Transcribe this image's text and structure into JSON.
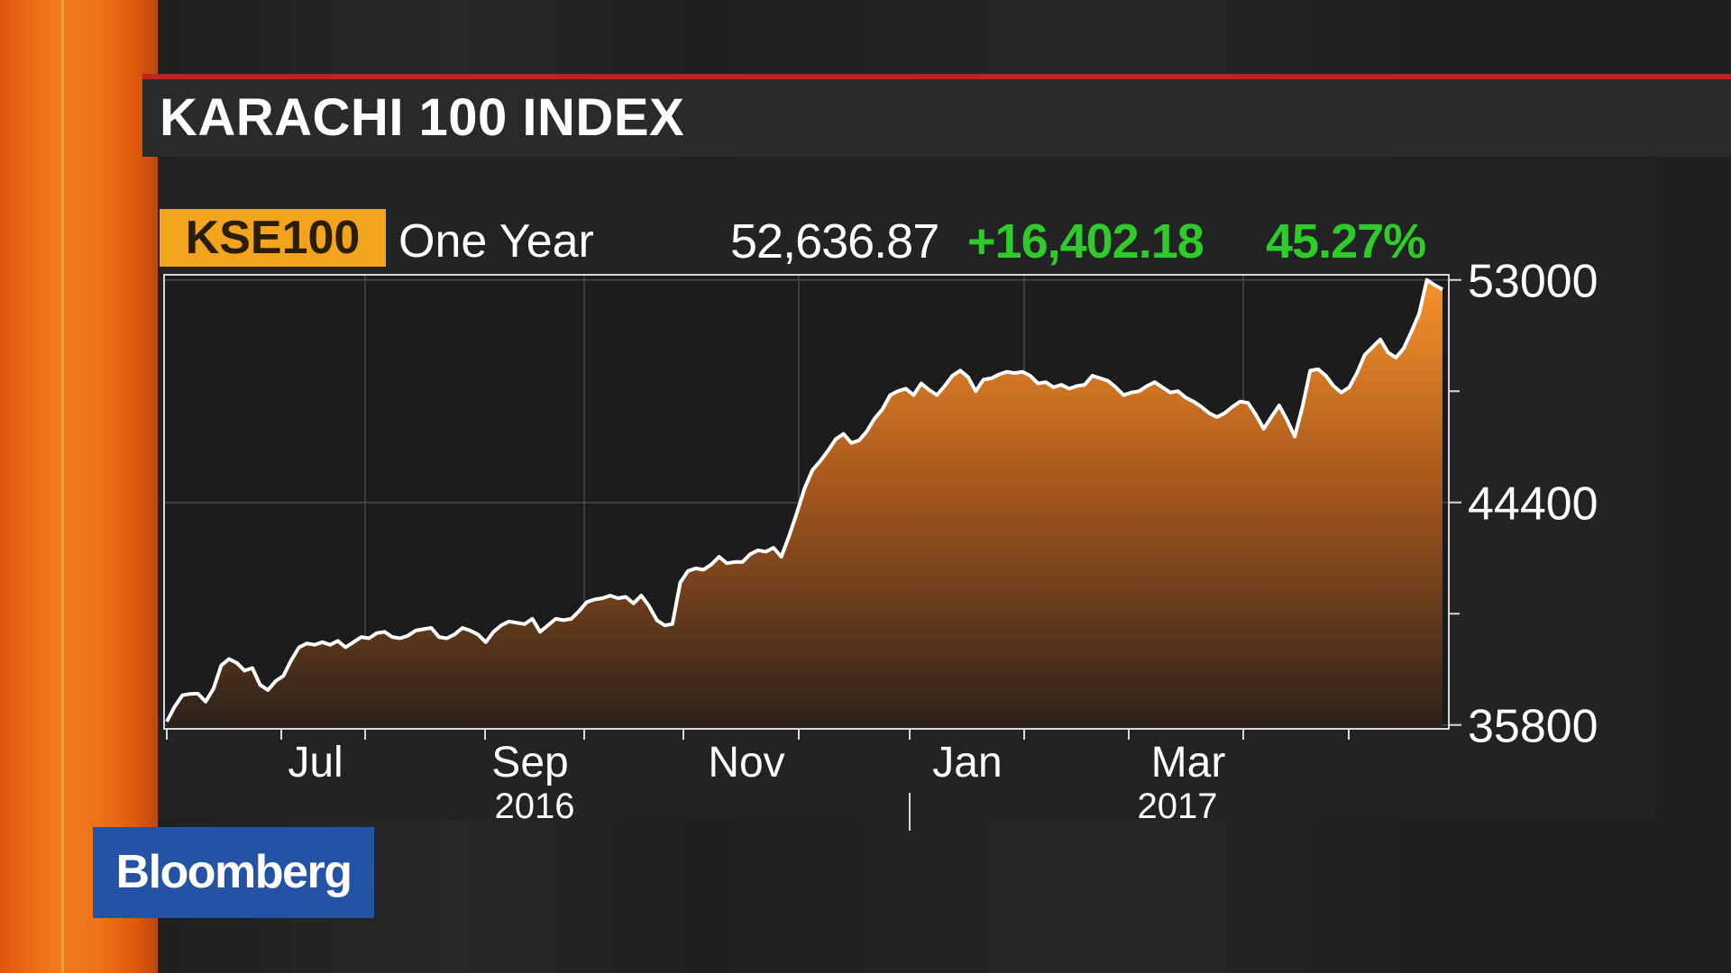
{
  "header": {
    "title": "KARACHI 100 INDEX"
  },
  "quote": {
    "ticker": "KSE100",
    "period": "One Year",
    "last": "52,636.87",
    "net_change": "+16,402.18",
    "pct_change": "45.27%"
  },
  "branding": {
    "logo": "Bloomberg"
  },
  "colors": {
    "accent_orange": "#f2a41c",
    "positive_green": "#2ecb2b",
    "line": "#ffffff",
    "area_top": "#f7922c",
    "header_red": "#b8261f",
    "logo_blue": "#2453a6"
  },
  "chart_data": {
    "type": "area",
    "series": [
      {
        "values": [
          35930,
          36500,
          36950,
          37000,
          37010,
          36700,
          37200,
          38100,
          38350,
          38200,
          37900,
          38000,
          37350,
          37150,
          37500,
          37700,
          38300,
          38800,
          38950,
          38900,
          39000,
          38900,
          39050,
          38800,
          39000,
          39200,
          39150,
          39350,
          39400,
          39200,
          39150,
          39250,
          39450,
          39500,
          39550,
          39200,
          39150,
          39300,
          39550,
          39450,
          39300,
          39000,
          39400,
          39650,
          39800,
          39750,
          39700,
          39900,
          39400,
          39650,
          39900,
          39850,
          39900,
          40200,
          40550,
          40650,
          40700,
          40800,
          40700,
          40750,
          40500,
          40800,
          40400,
          39850,
          39650,
          39700,
          41300,
          41750,
          41850,
          41800,
          42000,
          42300,
          42050,
          42100,
          42100,
          42400,
          42550,
          42500,
          42650,
          42300,
          43100,
          44000,
          44950,
          45650,
          46000,
          46400,
          46850,
          47050,
          46700,
          46800,
          47150,
          47650,
          48000,
          48550,
          48700,
          48800,
          48550,
          49000,
          48750,
          48550,
          48900,
          49300,
          49500,
          49250,
          48700,
          49150,
          49200,
          49350,
          49450,
          49400,
          49450,
          49300,
          49000,
          49050,
          48850,
          48950,
          48800,
          48900,
          48950,
          49300,
          49200,
          49100,
          48850,
          48550,
          48650,
          48700,
          48900,
          49050,
          48850,
          48650,
          48700,
          48450,
          48300,
          48100,
          47850,
          47700,
          47850,
          48100,
          48300,
          48250,
          47800,
          47250,
          47700,
          48150,
          47600,
          46950,
          48100,
          49500,
          49550,
          49300,
          48900,
          48650,
          48850,
          49400,
          50100,
          50400,
          50700,
          50200,
          50000,
          50350,
          51000,
          51700,
          53000,
          52800,
          52636.87
        ]
      }
    ],
    "x": {
      "ticks": [
        "Jul",
        "Sep",
        "Nov",
        "Jan",
        "Mar"
      ],
      "years": [
        "2016",
        "2017"
      ]
    },
    "y": {
      "ticks": [
        53000,
        44400,
        35800
      ],
      "ylim": [
        35650,
        53200
      ]
    },
    "grid": true,
    "legend": "none"
  }
}
